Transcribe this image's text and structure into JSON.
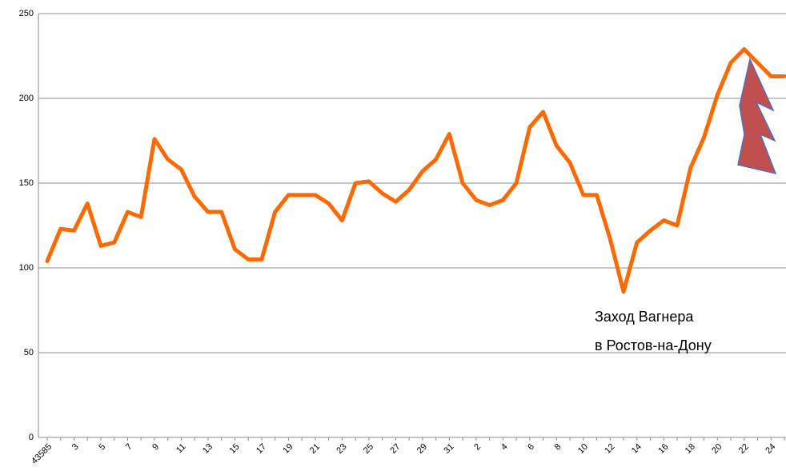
{
  "chart_data": {
    "type": "line",
    "categories": [
      "43585",
      null,
      "3",
      null,
      "5",
      null,
      "7",
      null,
      "9",
      null,
      "11",
      null,
      "13",
      null,
      "15",
      null,
      "17",
      null,
      "19",
      null,
      "21",
      null,
      "23",
      null,
      "25",
      null,
      "27",
      null,
      "29",
      null,
      "31",
      null,
      "2",
      null,
      "4",
      null,
      "6",
      null,
      "8",
      null,
      "10",
      null,
      "12",
      null,
      "14",
      null,
      "16",
      null,
      "18",
      null,
      "20",
      null,
      "22",
      null,
      "24",
      null
    ],
    "series": [
      {
        "name": "",
        "color": "#ff6a00",
        "values": [
          104,
          123,
          122,
          138,
          113,
          115,
          133,
          130,
          176,
          164,
          158,
          142,
          133,
          133,
          111,
          105,
          105,
          133,
          143,
          143,
          143,
          138,
          128,
          150,
          151,
          144,
          139,
          146,
          157,
          164,
          179,
          150,
          140,
          137,
          140,
          150,
          183,
          192,
          172,
          162,
          143,
          143,
          117,
          86,
          115,
          122,
          128,
          125,
          159,
          177,
          202,
          221,
          229,
          221,
          213,
          213
        ]
      }
    ],
    "ylim": [
      0,
      250
    ],
    "yticks": [
      0,
      50,
      100,
      150,
      200,
      250
    ],
    "grid": true,
    "annotations": [
      "Заход Вагнера",
      "в Ростов-на-Дону"
    ]
  }
}
